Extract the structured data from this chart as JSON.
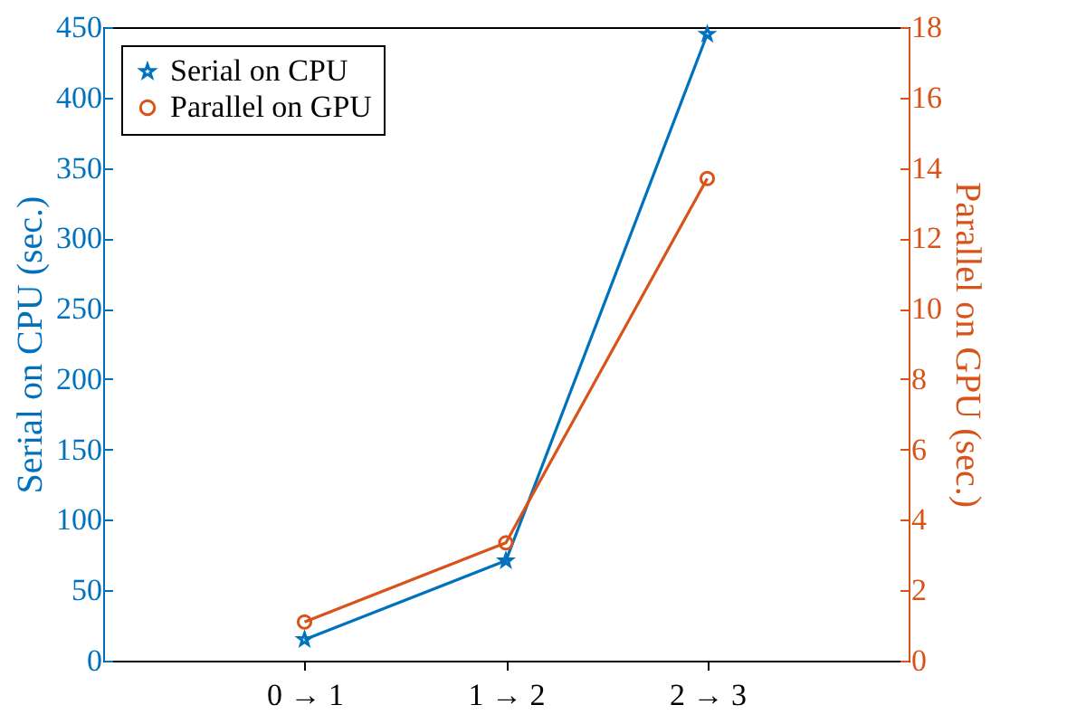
{
  "chart_data": {
    "type": "line",
    "categories": [
      "0 → 1",
      "1 → 2",
      "2 → 3"
    ],
    "ylabel": "Serial on CPU (sec.)",
    "y2label": "Parallel on GPU (sec.)",
    "ylim": [
      0,
      450
    ],
    "yticks": [
      0,
      50,
      100,
      150,
      200,
      250,
      300,
      350,
      400,
      450
    ],
    "y2lim": [
      0,
      18
    ],
    "y2ticks": [
      0,
      2,
      4,
      6,
      8,
      10,
      12,
      14,
      16,
      18
    ],
    "legend": "top left",
    "grid": false,
    "series": [
      {
        "name": "Serial on CPU",
        "color": "#0072bd",
        "marker": "star",
        "values": [
          15,
          71,
          445
        ]
      },
      {
        "name": "Parallel on GPU",
        "color": "#d95319",
        "marker": "circle",
        "axis": "y2",
        "values": [
          1.1,
          3.35,
          13.7
        ]
      }
    ]
  }
}
